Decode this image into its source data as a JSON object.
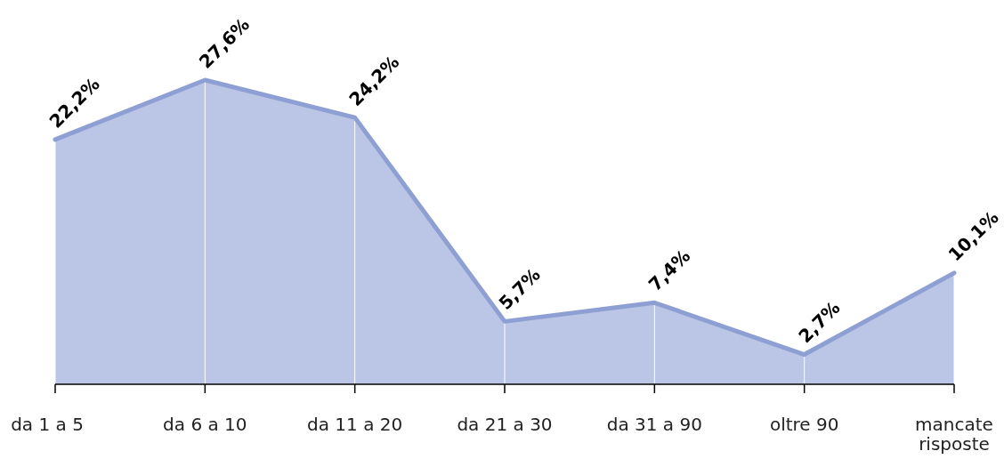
{
  "chart_data": {
    "type": "area",
    "categories": [
      "da 1 a 5",
      "da 6 a 10",
      "da 11 a 20",
      "da 21 a 30",
      "da 31 a 90",
      "oltre 90",
      "mancate risposte"
    ],
    "series": [
      {
        "color": "#8e9fd3",
        "values": [
          22.2,
          27.6,
          24.2,
          5.7,
          7.4,
          2.7,
          10.1
        ],
        "value_labels": [
          "22,2%",
          "27,6%",
          "24,2%",
          "5,7%",
          "7,4%",
          "2,7%",
          "10,1%"
        ]
      }
    ],
    "grid": "x"
  }
}
